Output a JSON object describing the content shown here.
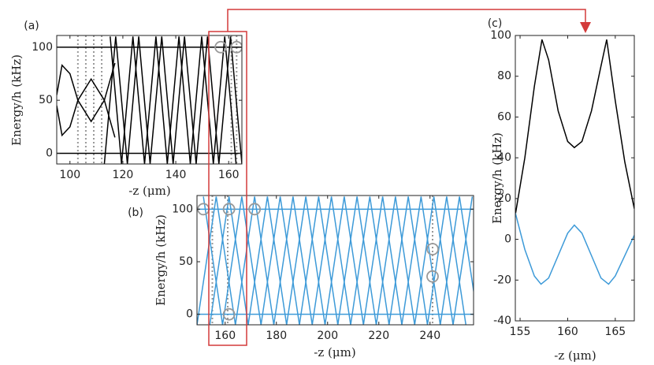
{
  "chart_data": [
    {
      "type": "line",
      "panel_label": "(a)",
      "xlabel": "-z (μm)",
      "ylabel": "Energy/h (kHz)",
      "xlim": [
        95,
        165
      ],
      "ylim": [
        -10,
        111
      ],
      "xticks": [
        100,
        120,
        140,
        160
      ],
      "yticks": [
        0,
        50,
        100
      ],
      "series": [
        {
          "color": "#000000",
          "x": [
            95,
            165
          ],
          "values": [
            0,
            0
          ]
        },
        {
          "color": "#000000",
          "x": [
            95,
            165
          ],
          "values": [
            100,
            100
          ]
        },
        {
          "color": "#000000",
          "x": [
            95,
            97,
            100,
            103,
            108,
            113,
            117
          ],
          "values": [
            55,
            83,
            75,
            50,
            70,
            50,
            85
          ]
        },
        {
          "color": "#000000",
          "x": [
            95,
            97,
            100,
            103,
            108,
            113,
            117
          ],
          "values": [
            45,
            17,
            25,
            50,
            30,
            50,
            15
          ]
        },
        {
          "color": "#000000",
          "x": [
            113,
            117.3,
            121.7,
            126,
            130.3,
            134.7,
            139,
            143.3,
            147.7,
            152,
            156.3,
            160.7,
            165
          ],
          "values": [
            -10,
            110,
            -10,
            110,
            -10,
            110,
            -10,
            110,
            -10,
            110,
            -10,
            110,
            -10
          ]
        },
        {
          "color": "#000000",
          "x": [
            115.2,
            119.5,
            123.8,
            128.2,
            132.5,
            136.8,
            141.2,
            145.5,
            149.8,
            154.2,
            158.5,
            162.8
          ],
          "values": [
            110,
            -10,
            110,
            -10,
            110,
            -10,
            110,
            -10,
            110,
            -10,
            110,
            -10
          ]
        }
      ],
      "reference_x": [
        103,
        106,
        109,
        112,
        161,
        163
      ],
      "circles": {
        "x": [
          157,
          163
        ],
        "y": [
          100,
          100
        ]
      }
    },
    {
      "type": "line",
      "panel_label": "(b)",
      "xlabel": "-z (μm)",
      "ylabel": "Energy/h (kHz)",
      "xlim": [
        149,
        257
      ],
      "ylim": [
        -10,
        113
      ],
      "xticks": [
        160,
        180,
        200,
        220,
        240
      ],
      "yticks": [
        0,
        50,
        100
      ],
      "series": [
        {
          "color": "#3d9ad8",
          "x": [
            149,
            257
          ],
          "values": [
            0,
            0
          ]
        },
        {
          "color": "#3d9ad8",
          "x": [
            149,
            257
          ],
          "values": [
            100,
            100
          ]
        },
        {
          "color": "#3d9ad8",
          "x": [
            149,
            156.5,
            164,
            171.5,
            179,
            186.5,
            194,
            201.5,
            209,
            216.5,
            224,
            231.5,
            239,
            246.5,
            254
          ],
          "values": [
            -10,
            112,
            -10,
            112,
            -10,
            112,
            -10,
            112,
            -10,
            112,
            -10,
            112,
            -10,
            112,
            -10
          ]
        },
        {
          "color": "#3d9ad8",
          "x": [
            151.5,
            159,
            166.5,
            174,
            181.5,
            189,
            196.5,
            204,
            211.5,
            219,
            226.5,
            234,
            241.5,
            249,
            256.5
          ],
          "values": [
            112,
            -10,
            112,
            -10,
            112,
            -10,
            112,
            -10,
            112,
            -10,
            112,
            -10,
            112,
            -10,
            112
          ]
        },
        {
          "color": "#3d9ad8",
          "x": [
            154,
            161.5,
            169,
            176.5,
            184,
            191.5,
            199,
            206.5,
            214,
            221.5,
            229,
            236.5,
            244,
            251.5,
            259
          ],
          "values": [
            -10,
            112,
            -10,
            112,
            -10,
            112,
            -10,
            112,
            -10,
            112,
            -10,
            112,
            -10,
            112,
            -10
          ]
        }
      ],
      "reference_x": [
        155,
        161,
        241
      ],
      "circles": {
        "x": [
          151.5,
          161.5,
          171.5,
          161.5,
          241,
          241
        ],
        "y": [
          100,
          100,
          100,
          0,
          62,
          36
        ]
      }
    },
    {
      "type": "line",
      "panel_label": "(c)",
      "xlabel": "-z (μm)",
      "ylabel": "Energy/h (kHz)",
      "xlim": [
        154.5,
        167
      ],
      "ylim": [
        -40,
        100
      ],
      "xticks": [
        155,
        160,
        165
      ],
      "yticks": [
        -40,
        -20,
        0,
        20,
        40,
        60,
        80,
        100
      ],
      "series": [
        {
          "color": "#000000",
          "x": [
            154.5,
            155.5,
            156.5,
            157.3,
            158,
            159,
            160,
            160.7,
            161.5,
            162.5,
            163.5,
            164.1,
            165,
            166,
            167
          ],
          "values": [
            12,
            40,
            75,
            98,
            88,
            63,
            48,
            45,
            48,
            63,
            85,
            98,
            68,
            38,
            15
          ]
        },
        {
          "color": "#3d9ad8",
          "x": [
            154.5,
            155.5,
            156.5,
            157.2,
            158,
            159,
            160,
            160.7,
            161.5,
            162.5,
            163.5,
            164.3,
            165,
            166,
            167
          ],
          "values": [
            13,
            -5,
            -18,
            -22,
            -19,
            -8,
            3,
            7,
            3,
            -8,
            -19,
            -22,
            -18,
            -8,
            2
          ]
        }
      ]
    }
  ]
}
